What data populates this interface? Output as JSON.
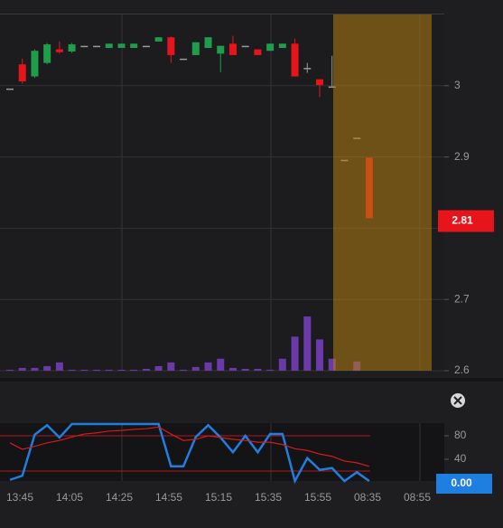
{
  "chart_data": {
    "type": "candlestick",
    "ylim": [
      2.6,
      3.1
    ],
    "yticks": [
      2.6,
      2.7,
      2.8,
      2.9,
      3
    ],
    "grid": true,
    "up_color": "#1e9e4a",
    "down_color": "#e8141c",
    "flat_color": "#9a9a9a",
    "open": [
      2.996,
      3.03,
      3.013,
      3.032,
      3.051,
      3.048,
      3.056,
      3.056,
      3.053,
      3.053,
      3.053,
      3.056,
      3.062,
      3.068,
      3.038,
      3.043,
      3.053,
      3.045,
      3.059,
      3.056,
      3.051,
      3.049,
      3.053,
      3.059,
      3.025,
      3.009,
      2.999,
      2.896,
      2.927,
      2.899
    ],
    "high": [
      2.996,
      3.038,
      3.051,
      3.06,
      3.062,
      3.06,
      3.056,
      3.056,
      3.059,
      3.059,
      3.059,
      3.056,
      3.068,
      3.069,
      3.038,
      3.061,
      3.068,
      3.056,
      3.07,
      3.056,
      3.051,
      3.059,
      3.059,
      3.066,
      3.032,
      3.009,
      3.042,
      2.896,
      2.927,
      2.899
    ],
    "low": [
      2.996,
      3.003,
      3.011,
      3.03,
      3.045,
      3.046,
      3.056,
      3.056,
      3.053,
      3.053,
      3.053,
      3.056,
      3.062,
      3.032,
      3.038,
      3.043,
      3.053,
      3.019,
      3.043,
      3.056,
      3.043,
      3.049,
      3.053,
      3.013,
      3.018,
      2.984,
      2.999,
      2.896,
      2.927,
      2.814
    ],
    "close": [
      2.996,
      3.006,
      3.049,
      3.058,
      3.047,
      3.058,
      3.056,
      3.056,
      3.059,
      3.059,
      3.059,
      3.056,
      3.068,
      3.043,
      3.038,
      3.061,
      3.068,
      3.056,
      3.043,
      3.056,
      3.043,
      3.059,
      3.059,
      3.013,
      3.025,
      3.001,
      2.999,
      2.896,
      2.927,
      2.814
    ],
    "volume": [
      1,
      3,
      3,
      5,
      9,
      1,
      1,
      1,
      1,
      1,
      1,
      2,
      5,
      9,
      1,
      4,
      9,
      13,
      3,
      2,
      2,
      1,
      13,
      37,
      59,
      34,
      13,
      0,
      10,
      0
    ],
    "volume_color": "#6a3aa8",
    "current_price": 2.81,
    "xticks": [
      "13:45",
      "14:05",
      "14:25",
      "14:55",
      "15:15",
      "15:35",
      "15:55",
      "08:35",
      "08:55"
    ],
    "oscillator": {
      "ylim": [
        0,
        100
      ],
      "yticks": [
        80,
        40
      ],
      "levels": [
        80,
        20
      ],
      "level_color": "#b01818",
      "series": [
        {
          "color": "#1f7fe0",
          "values": [
            5,
            12,
            82,
            98,
            77,
            100,
            100,
            100,
            100,
            100,
            100,
            100,
            100,
            28,
            28,
            78,
            98,
            77,
            52,
            80,
            52,
            83,
            83,
            3,
            42,
            22,
            25,
            3,
            18,
            3
          ]
        },
        {
          "color": "#d41a1a",
          "values": [
            68,
            57,
            62,
            68,
            72,
            78,
            83,
            85,
            88,
            89,
            91,
            92,
            95,
            83,
            72,
            74,
            80,
            77,
            74,
            72,
            69,
            69,
            65,
            58,
            55,
            49,
            45,
            37,
            34,
            28
          ]
        }
      ],
      "current": {
        "value": 0,
        "label": "0.00"
      }
    }
  }
}
